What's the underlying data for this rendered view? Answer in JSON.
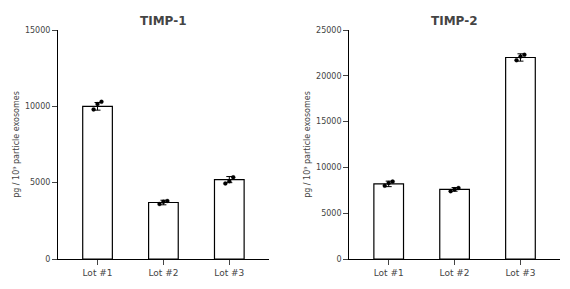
{
  "chart_data": [
    {
      "type": "bar",
      "title": "TIMP-1",
      "categories": [
        "Lot #1",
        "Lot #2",
        "Lot #3"
      ],
      "values": [
        10000,
        3700,
        5200
      ],
      "errors": [
        250,
        150,
        200
      ],
      "dots": [
        [
          9800,
          10150,
          10300
        ],
        [
          3600,
          3750,
          3800
        ],
        [
          4950,
          5100,
          5350
        ]
      ],
      "ylim": [
        0,
        15000
      ],
      "yticks": [
        0,
        5000,
        10000,
        15000
      ],
      "ylabel": "pg / 10⁹ particle exosomes",
      "color": "white",
      "grid": false
    },
    {
      "type": "bar",
      "title": "TIMP-2",
      "categories": [
        "Lot #1",
        "Lot #2",
        "Lot #3"
      ],
      "values": [
        8200,
        7600,
        22000
      ],
      "errors": [
        300,
        200,
        400
      ],
      "dots": [
        [
          8000,
          8300,
          8450
        ],
        [
          7400,
          7600,
          7750
        ],
        [
          21700,
          22100,
          22300
        ]
      ],
      "ylim": [
        0,
        25000
      ],
      "yticks": [
        0,
        5000,
        10000,
        15000,
        20000,
        25000
      ],
      "ylabel": "pg / 10⁹ particle exosomes",
      "color": "white",
      "grid": false
    }
  ]
}
